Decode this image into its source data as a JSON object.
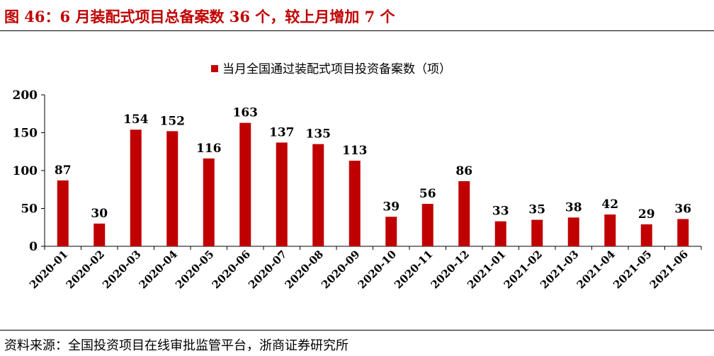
{
  "title": "图 46：6 月装配式项目总备案数 36 个，较上月增加 7 个",
  "source": "资料来源：全国投资项目在线审批监管平台，浙商证券研究所",
  "colors": {
    "title": "#c00000",
    "bar": "#c00000"
  },
  "chart_data": {
    "type": "bar",
    "title": "",
    "xlabel": "",
    "ylabel": "",
    "categories": [
      "2020-01",
      "2020-02",
      "2020-03",
      "2020-04",
      "2020-05",
      "2020-06",
      "2020-07",
      "2020-08",
      "2020-09",
      "2020-10",
      "2020-11",
      "2020-12",
      "2021-01",
      "2021-02",
      "2021-03",
      "2021-04",
      "2021-05",
      "2021-06"
    ],
    "series": [
      {
        "name": "当月全国通过装配式项目投资备案数（项）",
        "values": [
          87,
          30,
          154,
          152,
          116,
          163,
          137,
          135,
          113,
          39,
          56,
          86,
          33,
          35,
          38,
          42,
          29,
          36
        ]
      }
    ],
    "ylim": [
      0,
      200
    ],
    "yticks": [
      0,
      50,
      100,
      150,
      200
    ],
    "grid": false,
    "legend_position": "top-center"
  }
}
